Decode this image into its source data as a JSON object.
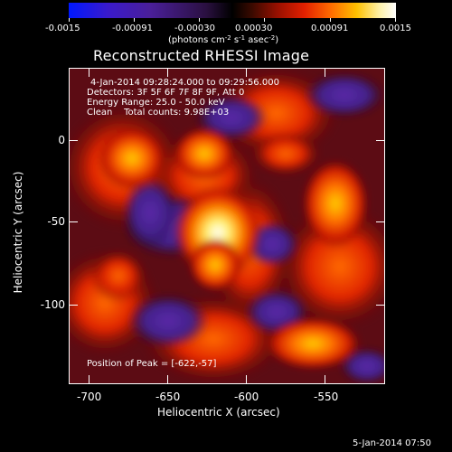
{
  "colorbar": {
    "ticks": [
      "-0.0015",
      "-0.00091",
      "-0.00030",
      "0.00030",
      "0.00091",
      "0.0015"
    ],
    "unit_prefix": "(photons cm",
    "unit_exp1": "-2",
    "unit_mid": " s",
    "unit_exp2": "-1",
    "unit_mid2": " asec",
    "unit_exp3": "-2",
    "unit_suffix": ")"
  },
  "title": "Reconstructed RHESSI Image",
  "info": {
    "time": "4-Jan-2014 09:28:24.000 to 09:29:56.000",
    "detectors": "Detectors: 3F 5F 6F 7F 8F 9F, Att 0",
    "energy": "Energy Range: 25.0 - 50.0 keV",
    "clean": "Clean    Total counts: 9.98E+03",
    "peak": "Position of Peak = [-622,-57]"
  },
  "x_axis": {
    "label": "Heliocentric X (arcsec)",
    "ticks": [
      "-700",
      "-650",
      "-600",
      "-550"
    ]
  },
  "y_axis": {
    "label": "Heliocentric Y (arcsec)",
    "ticks": [
      "0",
      "-50",
      "-100"
    ]
  },
  "footer": "5-Jan-2014 07:50"
}
